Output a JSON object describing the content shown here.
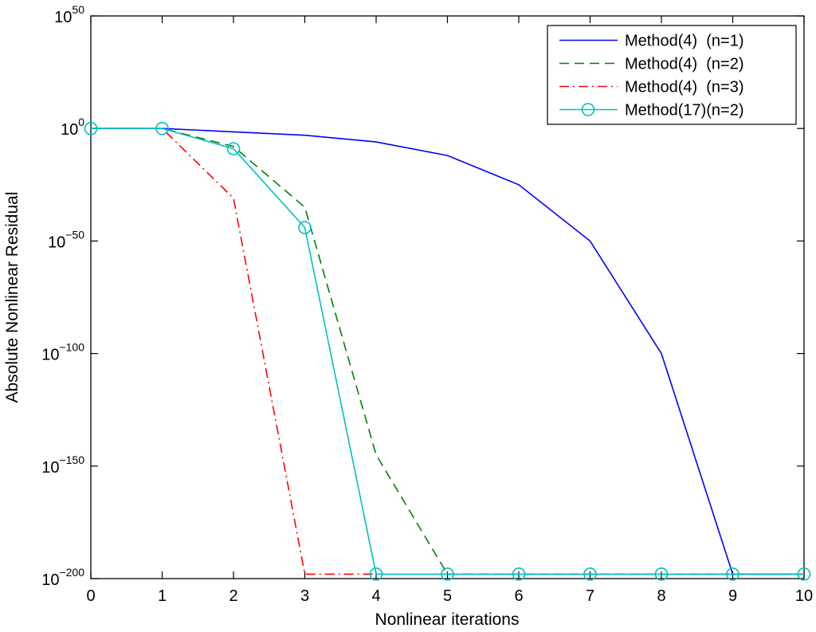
{
  "chart_data": {
    "type": "line",
    "title": "",
    "xlabel": "Nonlinear iterations",
    "ylabel": "Absolute Nonlinear Residual",
    "xlim": [
      0,
      10
    ],
    "ylim_exponent": [
      -200,
      50
    ],
    "y_scale": "log",
    "x_ticks": [
      0,
      1,
      2,
      3,
      4,
      5,
      6,
      7,
      8,
      9,
      10
    ],
    "y_ticks": [
      {
        "exponent": 50,
        "base": "10",
        "sup": "50"
      },
      {
        "exponent": 0,
        "base": "10",
        "sup": "0"
      },
      {
        "exponent": -50,
        "base": "10",
        "sup": "−50"
      },
      {
        "exponent": -100,
        "base": "10",
        "sup": "−100"
      },
      {
        "exponent": -150,
        "base": "10",
        "sup": "−150"
      },
      {
        "exponent": -200,
        "base": "10",
        "sup": "−200"
      }
    ],
    "grid": false,
    "legend_position": "top-right",
    "series": [
      {
        "name": "Method(4)  (n=1)",
        "color": "#0000ff",
        "dash": "solid",
        "marker": "none",
        "x": [
          0,
          1,
          2,
          3,
          4,
          5,
          6,
          7,
          8,
          9,
          10
        ],
        "y_exponent": [
          0,
          0,
          -1.5,
          -3,
          -6,
          -12,
          -25,
          -50,
          -100,
          -198,
          -198
        ]
      },
      {
        "name": "Method(4)  (n=2)",
        "color": "#008000",
        "dash": "dashed",
        "marker": "none",
        "x": [
          0,
          1,
          2,
          3,
          4,
          5,
          6,
          7,
          8,
          9,
          10
        ],
        "y_exponent": [
          0,
          0,
          -8,
          -35,
          -145,
          -198,
          -198,
          -198,
          -198,
          -198,
          -198
        ]
      },
      {
        "name": "Method(4)  (n=3)",
        "color": "#ff0000",
        "dash": "dashdot",
        "marker": "none",
        "x": [
          0,
          1,
          2,
          3,
          4
        ],
        "y_exponent": [
          0,
          0,
          -31,
          -198,
          -198
        ]
      },
      {
        "name": "Method(17)(n=2)",
        "color": "#00bfbf",
        "dash": "solid",
        "marker": "circle",
        "x": [
          0,
          1,
          2,
          3,
          4,
          5,
          6,
          7,
          8,
          9,
          10
        ],
        "y_exponent": [
          0,
          0,
          -9,
          -44,
          -198,
          -198,
          -198,
          -198,
          -198,
          -198,
          -198
        ]
      }
    ]
  }
}
